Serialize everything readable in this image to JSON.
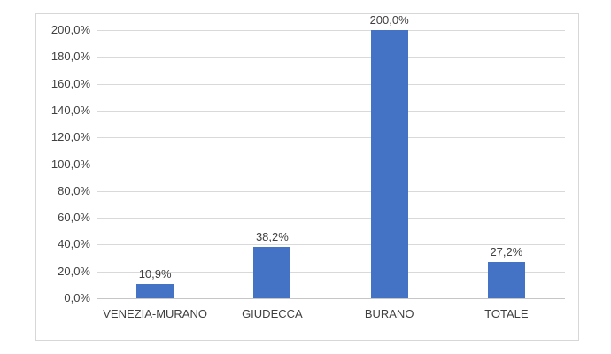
{
  "chart_data": {
    "type": "bar",
    "title": "",
    "xlabel": "",
    "ylabel": "",
    "categories": [
      "VENEZIA-MURANO",
      "GIUDECCA",
      "BURANO",
      "TOTALE"
    ],
    "values": [
      10.9,
      38.2,
      200.0,
      27.2
    ],
    "data_labels": [
      "10,9%",
      "38,2%",
      "200,0%",
      "27,2%"
    ],
    "ylim": [
      0,
      200
    ],
    "y_tick_step": 20,
    "y_tick_labels": [
      "0,0%",
      "20,0%",
      "40,0%",
      "60,0%",
      "80,0%",
      "100,0%",
      "120,0%",
      "140,0%",
      "160,0%",
      "180,0%",
      "200,0%"
    ],
    "grid": true,
    "legend": false,
    "colors": {
      "bar_fill": "#4472C4",
      "gridline": "#d9d9d9",
      "axis_line": "#c6c6c6",
      "text": "#404040",
      "frame_border": "#d7d7d7",
      "background": "#ffffff"
    }
  }
}
